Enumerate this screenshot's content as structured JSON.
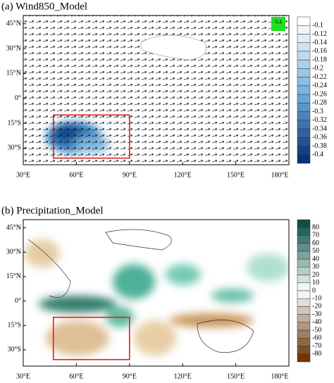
{
  "panels": [
    {
      "title": "(a) Wind850_Model",
      "xticks": [
        {
          "value": 30,
          "label": "30°E"
        },
        {
          "value": 60,
          "label": "60°E"
        },
        {
          "value": 90,
          "label": "90°E"
        },
        {
          "value": 120,
          "label": "120°E"
        },
        {
          "value": 150,
          "label": "150°E"
        },
        {
          "value": 180,
          "label": "180°E"
        }
      ],
      "yticks": [
        {
          "value": 45,
          "label": "45°N"
        },
        {
          "value": 30,
          "label": "30°N"
        },
        {
          "value": 15,
          "label": "15°N"
        },
        {
          "value": 0,
          "label": "0°"
        },
        {
          "value": -15,
          "label": "15°S"
        },
        {
          "value": -30,
          "label": "30°S"
        }
      ],
      "vector_key": "0.4",
      "colorbar": [
        "-0.1",
        "-0.12",
        "-0.14",
        "-0.16",
        "-0.18",
        "-0.2",
        "-0.22",
        "-0.24",
        "-0.26",
        "-0.28",
        "-0.3",
        "-0.32",
        "-0.34",
        "-0.36",
        "-0.38",
        "-0.4"
      ]
    },
    {
      "title": "(b) Precipitation_Model",
      "xticks": [
        {
          "value": 30,
          "label": "30°E"
        },
        {
          "value": 60,
          "label": "60°E"
        },
        {
          "value": 90,
          "label": "90°E"
        },
        {
          "value": 120,
          "label": "120°E"
        },
        {
          "value": 150,
          "label": "150°E"
        },
        {
          "value": 180,
          "label": "180°E"
        }
      ],
      "yticks": [
        {
          "value": 45,
          "label": "45°N"
        },
        {
          "value": 30,
          "label": "30°N"
        },
        {
          "value": 15,
          "label": "15°N"
        },
        {
          "value": 0,
          "label": "0°"
        },
        {
          "value": -15,
          "label": "15°S"
        },
        {
          "value": -30,
          "label": "30°S"
        }
      ],
      "colorbar": [
        "80",
        "70",
        "60",
        "50",
        "40",
        "30",
        "20",
        "10",
        "0",
        "-10",
        "-20",
        "-30",
        "-40",
        "-50",
        "-60",
        "-70",
        "-80"
      ]
    }
  ]
}
